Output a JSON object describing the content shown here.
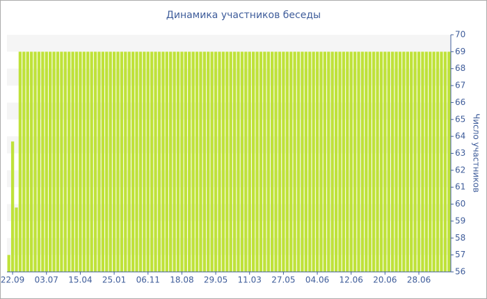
{
  "chart_data": {
    "type": "bar",
    "title": "Динамика участников беседы",
    "y_label": "Число участников",
    "categories": [
      null,
      "22.09",
      null,
      null,
      null,
      null,
      null,
      null,
      null,
      null,
      "03.07",
      null,
      null,
      null,
      null,
      null,
      null,
      null,
      null,
      "15.04",
      null,
      null,
      null,
      null,
      null,
      null,
      null,
      null,
      "25.01",
      null,
      null,
      null,
      null,
      null,
      null,
      null,
      null,
      "06.11",
      null,
      null,
      null,
      null,
      null,
      null,
      null,
      null,
      "18.08",
      null,
      null,
      null,
      null,
      null,
      null,
      null,
      null,
      "29.05",
      null,
      null,
      null,
      null,
      null,
      null,
      null,
      null,
      "11.03",
      null,
      null,
      null,
      null,
      null,
      null,
      null,
      null,
      "27.05",
      null,
      null,
      null,
      null,
      null,
      null,
      null,
      null,
      "04.06",
      null,
      null,
      null,
      null,
      null,
      null,
      null,
      null,
      "12.06",
      null,
      null,
      null,
      null,
      null,
      null,
      null,
      null,
      "20.06",
      null,
      null,
      null,
      null,
      null,
      null,
      null,
      null,
      "28.06",
      null,
      null,
      null,
      null,
      null,
      null,
      null,
      null
    ],
    "values": [
      57,
      63.7,
      59.8,
      69,
      69,
      69,
      69,
      69,
      69,
      69,
      69,
      69,
      69,
      69,
      69,
      69,
      69,
      69,
      69,
      69,
      69,
      69,
      69,
      69,
      69,
      69,
      69,
      69,
      69,
      69,
      69,
      69,
      69,
      69,
      69,
      69,
      69,
      69,
      69,
      69,
      69,
      69,
      69,
      69,
      69,
      69,
      69,
      69,
      69,
      69,
      69,
      69,
      69,
      69,
      69,
      69,
      69,
      69,
      69,
      69,
      69,
      69,
      69,
      69,
      69,
      69,
      69,
      69,
      69,
      69,
      69,
      69,
      69,
      69,
      69,
      69,
      69,
      69,
      69,
      69,
      69,
      69,
      69,
      69,
      69,
      69,
      69,
      69,
      69,
      69,
      69,
      69,
      69,
      69,
      69,
      69,
      69,
      69,
      69,
      69,
      69,
      69,
      69,
      69,
      69,
      69,
      69,
      69,
      69,
      69,
      69,
      69,
      69,
      69,
      69,
      69,
      69,
      69
    ],
    "color": "#bfe23a",
    "ylim": [
      56,
      70
    ],
    "yticks": [
      56,
      57,
      58,
      59,
      60,
      61,
      62,
      63,
      64,
      65,
      66,
      67,
      68,
      69,
      70
    ],
    "grid": true,
    "y_axis_side": "right"
  }
}
